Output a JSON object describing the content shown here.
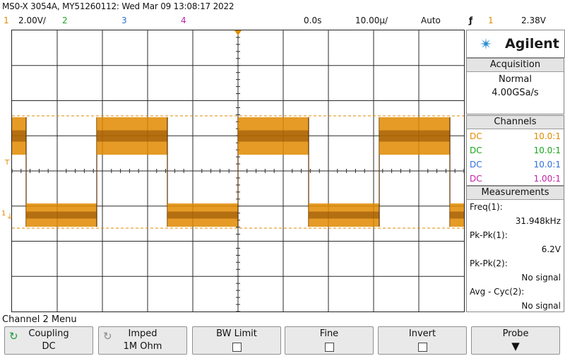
{
  "title_bar": "MS0-X 3054A, MY51260112: Wed Mar 09 13:08:17 2022",
  "channel_row": {
    "ch1_num": "1",
    "ch1_scale": "2.00V/",
    "ch2_num": "2",
    "ch3_num": "3",
    "ch4_num": "4",
    "time_delay": "0.0s",
    "time_scale": "10.00µ/",
    "trigger_mode": "Auto",
    "trigger_icon": "ƒ",
    "trigger_source": "1",
    "trigger_level": "2.38V"
  },
  "logo": {
    "brand": "Agilent"
  },
  "acquisition": {
    "header": "Acquisition",
    "mode": "Normal",
    "rate": "4.00GSa/s"
  },
  "channels": {
    "header": "Channels",
    "rows": [
      {
        "coupling": "DC",
        "probe": "10.0:1",
        "color": "#e08a00"
      },
      {
        "coupling": "DC",
        "probe": "10.0:1",
        "color": "#1aa51a"
      },
      {
        "coupling": "DC",
        "probe": "10.0:1",
        "color": "#2e6fd6"
      },
      {
        "coupling": "DC",
        "probe": "1.00:1",
        "color": "#c21fa8"
      }
    ]
  },
  "measurements": {
    "header": "Measurements",
    "freq_label": "Freq(1):",
    "freq_value": "31.948kHz",
    "pkpk1_label": "Pk-Pk(1):",
    "pkpk1_value": "6.2V",
    "pkpk2_label": "Pk-Pk(2):",
    "pkpk2_value": "No signal",
    "avg_label": "Avg - Cyc(2):",
    "avg_value": "No signal"
  },
  "menu_title": "Channel 2 Menu",
  "softkeys": {
    "coupling_label": "Coupling",
    "coupling_value": "DC",
    "imped_label": "Imped",
    "imped_value": "1M Ohm",
    "bwlimit_label": "BW Limit",
    "fine_label": "Fine",
    "invert_label": "Invert",
    "probe_label": "Probe"
  },
  "markers": {
    "trigger_marker": "T",
    "ground_marker": "1"
  },
  "waveform": {
    "channel_color": "#e08a00",
    "frequency_khz": 31.948,
    "pk_pk_v": 6.2
  }
}
